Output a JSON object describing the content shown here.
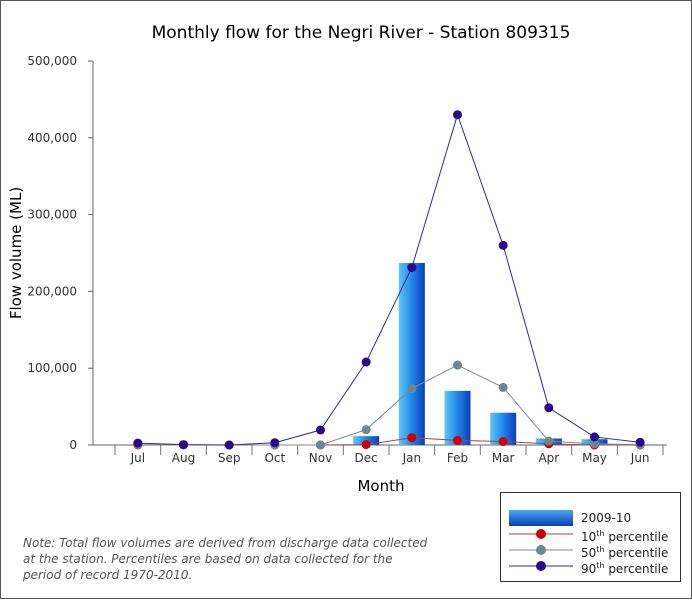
{
  "chart_data": {
    "type": "bar",
    "title": "Monthly flow for the Negri River - Station 809315",
    "xlabel": "Month",
    "ylabel": "Flow volume (ML)",
    "ylim": [
      0,
      500000
    ],
    "yticks": [
      "0",
      "100,000",
      "200,000",
      "300,000",
      "400,000",
      "500,000"
    ],
    "categories": [
      "Jul",
      "Aug",
      "Sep",
      "Oct",
      "Nov",
      "Dec",
      "Jan",
      "Feb",
      "Mar",
      "Apr",
      "May",
      "Jun"
    ],
    "bar_series": {
      "name": "2009-10",
      "values": [
        0,
        0,
        0,
        0,
        0,
        11500,
        237000,
        70500,
        42000,
        8500,
        7500,
        500
      ],
      "color": "#1a6fe0"
    },
    "series": [
      {
        "name": "10th percentile",
        "label_number": "10",
        "label_suffix": "th",
        "label_rest": " percentile",
        "color": "#cc0000",
        "line_color": "#b04040",
        "values": [
          0,
          0,
          0,
          0,
          0,
          500,
          9500,
          6000,
          4500,
          1500,
          0,
          0
        ]
      },
      {
        "name": "50th percentile",
        "label_number": "50",
        "label_suffix": "th",
        "label_rest": " percentile",
        "color": "#6e8890",
        "line_color": "#7a8f96",
        "values": [
          500,
          0,
          0,
          0,
          0,
          20000,
          73500,
          104000,
          75000,
          5000,
          1500,
          500
        ]
      },
      {
        "name": "90th percentile",
        "label_number": "90",
        "label_suffix": "th",
        "label_rest": " percentile",
        "color": "#2a0a8c",
        "line_color": "#2a2aa0",
        "values": [
          2500,
          500,
          0,
          3000,
          19500,
          108000,
          231000,
          430000,
          260000,
          48500,
          10500,
          3500
        ]
      }
    ],
    "legend_position": "bottom-right",
    "grid": false
  },
  "note": "Note: Total flow volumes are derived from discharge data collected at the station. Percentiles are based on data collected for the period of record 1970-2010."
}
